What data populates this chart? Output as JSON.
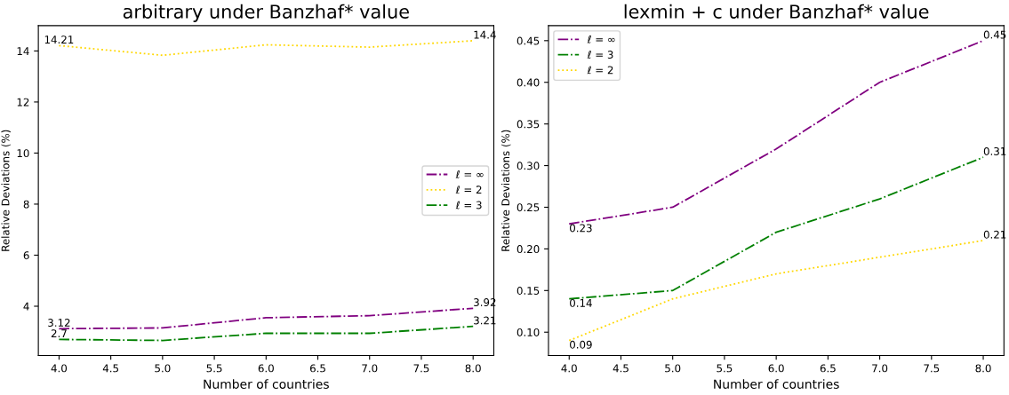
{
  "chart_data": [
    {
      "type": "line",
      "title": "arbitrary under Banzhaf* value",
      "xlabel": "Number of countries",
      "ylabel": "Relative Deviations (%)",
      "x": [
        4,
        5,
        6,
        7,
        8
      ],
      "xlim": [
        3.8,
        8.2
      ],
      "xticks": [
        {
          "value": 4,
          "label": "4.0"
        },
        {
          "value": 4.5,
          "label": "4.5"
        },
        {
          "value": 5,
          "label": "5.0"
        },
        {
          "value": 5.5,
          "label": "5.5"
        },
        {
          "value": 6,
          "label": "6.0"
        },
        {
          "value": 6.5,
          "label": "6.5"
        },
        {
          "value": 7,
          "label": "7.0"
        },
        {
          "value": 7.5,
          "label": "7.5"
        },
        {
          "value": 8,
          "label": "8.0"
        }
      ],
      "ylim": [
        2.07,
        14.99
      ],
      "yticks": [
        4,
        6,
        8,
        10,
        12,
        14
      ],
      "grid": false,
      "legend": "right",
      "marker": "none",
      "series": [
        {
          "name": "ℓ = ∞",
          "color": "#800080",
          "line_style": "dashdot",
          "values": [
            3.12,
            3.15,
            3.55,
            3.63,
            3.92
          ],
          "value_labels": [
            "3.12",
            null,
            null,
            null,
            "3.92"
          ]
        },
        {
          "name": "ℓ = 2",
          "color": "#ffd700",
          "line_style": "dotted",
          "values": [
            14.21,
            13.83,
            14.24,
            14.15,
            14.4
          ],
          "value_labels": [
            "14.21",
            null,
            null,
            null,
            "14.4"
          ]
        },
        {
          "name": "ℓ = 3",
          "color": "#008000",
          "line_style": "dashdot",
          "values": [
            2.7,
            2.66,
            2.94,
            2.94,
            3.21
          ],
          "value_labels": [
            "2.7",
            null,
            null,
            null,
            "3.21"
          ]
        }
      ]
    },
    {
      "type": "line",
      "title": "lexmin + c under Banzhaf* value",
      "xlabel": "Number of countries",
      "ylabel": "Relative Deviations (%)",
      "x": [
        4,
        5,
        6,
        7,
        8
      ],
      "xlim": [
        3.8,
        8.2
      ],
      "xticks": [
        {
          "value": 4,
          "label": "4.0"
        },
        {
          "value": 4.5,
          "label": "4.5"
        },
        {
          "value": 5,
          "label": "5.0"
        },
        {
          "value": 5.5,
          "label": "5.5"
        },
        {
          "value": 6,
          "label": "6.0"
        },
        {
          "value": 6.5,
          "label": "6.5"
        },
        {
          "value": 7,
          "label": "7.0"
        },
        {
          "value": 7.5,
          "label": "7.5"
        },
        {
          "value": 8,
          "label": "8.0"
        }
      ],
      "ylim": [
        0.072,
        0.468
      ],
      "yticks": [
        {
          "value": 0.1,
          "label": "0.10"
        },
        {
          "value": 0.15,
          "label": "0.15"
        },
        {
          "value": 0.2,
          "label": "0.20"
        },
        {
          "value": 0.25,
          "label": "0.25"
        },
        {
          "value": 0.3,
          "label": "0.30"
        },
        {
          "value": 0.35,
          "label": "0.35"
        },
        {
          "value": 0.4,
          "label": "0.40"
        },
        {
          "value": 0.45,
          "label": "0.45"
        }
      ],
      "grid": false,
      "legend": "top left",
      "marker": "none",
      "series": [
        {
          "name": "ℓ = ∞",
          "color": "#800080",
          "line_style": "dashdot",
          "values": [
            0.23,
            0.25,
            0.32,
            0.4,
            0.45
          ],
          "value_labels": [
            "0.23",
            null,
            null,
            null,
            "0.45"
          ]
        },
        {
          "name": "ℓ = 3",
          "color": "#008000",
          "line_style": "dashdot",
          "values": [
            0.14,
            0.15,
            0.22,
            0.26,
            0.31
          ],
          "value_labels": [
            "0.14",
            null,
            null,
            null,
            "0.31"
          ]
        },
        {
          "name": "ℓ = 2",
          "color": "#ffd700",
          "line_style": "dotted",
          "values": [
            0.09,
            0.14,
            0.17,
            0.19,
            0.21
          ],
          "value_labels": [
            "0.09",
            null,
            null,
            null,
            "0.21"
          ]
        }
      ]
    }
  ]
}
